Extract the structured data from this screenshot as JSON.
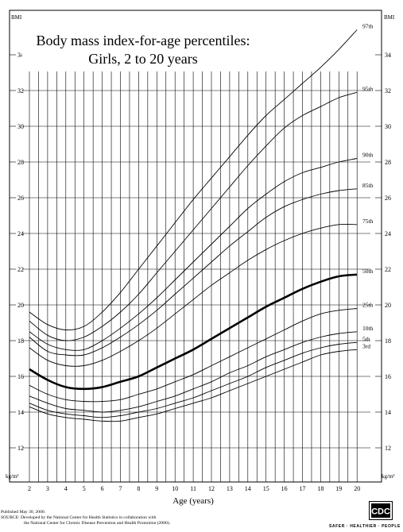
{
  "chart_data": {
    "type": "line",
    "title": "Body mass index-for-age percentiles:",
    "subtitle": "Girls, 2 to 20 years",
    "xlabel": "Age (years)",
    "ylabel_top": "BMI",
    "unit_label": "kg/m²",
    "xlim": [
      2,
      20
    ],
    "ylim": [
      11,
      36
    ],
    "x_ticks": [
      "2",
      "3",
      "4",
      "5",
      "6",
      "7",
      "8",
      "9",
      "10",
      "11",
      "12",
      "13",
      "14",
      "15",
      "16",
      "17",
      "18",
      "19",
      "20"
    ],
    "y_ticks": [
      "12",
      "14",
      "16",
      "18",
      "20",
      "22",
      "24",
      "26",
      "28",
      "30",
      "32",
      "34"
    ],
    "grid": true,
    "x": [
      2,
      3,
      4,
      5,
      6,
      7,
      8,
      9,
      10,
      11,
      12,
      13,
      14,
      15,
      16,
      17,
      18,
      19,
      20
    ],
    "series": [
      {
        "name": "97th",
        "bold": false,
        "values": [
          19.6,
          18.9,
          18.6,
          18.8,
          19.6,
          20.7,
          22.0,
          23.3,
          24.6,
          25.9,
          27.1,
          28.3,
          29.5,
          30.6,
          31.5,
          32.4,
          33.3,
          34.3,
          35.4
        ]
      },
      {
        "name": "95th",
        "bold": false,
        "values": [
          19.1,
          18.3,
          18.0,
          18.2,
          18.8,
          19.6,
          20.6,
          21.8,
          23.0,
          24.2,
          25.4,
          26.6,
          27.8,
          28.9,
          29.9,
          30.6,
          31.1,
          31.6,
          31.9
        ]
      },
      {
        "name": "90th",
        "bold": false,
        "values": [
          18.5,
          17.8,
          17.5,
          17.5,
          18.0,
          18.7,
          19.5,
          20.4,
          21.4,
          22.4,
          23.4,
          24.4,
          25.4,
          26.2,
          26.9,
          27.4,
          27.7,
          28.0,
          28.2
        ]
      },
      {
        "name": "85th",
        "bold": false,
        "values": [
          18.2,
          17.4,
          17.2,
          17.2,
          17.6,
          18.2,
          18.9,
          19.7,
          20.6,
          21.5,
          22.4,
          23.3,
          24.1,
          24.9,
          25.5,
          25.9,
          26.2,
          26.4,
          26.5
        ]
      },
      {
        "name": "75th",
        "bold": false,
        "values": [
          17.6,
          16.9,
          16.6,
          16.6,
          16.9,
          17.4,
          18.0,
          18.7,
          19.5,
          20.3,
          21.1,
          21.8,
          22.5,
          23.1,
          23.6,
          24.0,
          24.3,
          24.5,
          24.5
        ]
      },
      {
        "name": "50th",
        "bold": true,
        "values": [
          16.4,
          15.8,
          15.4,
          15.3,
          15.4,
          15.7,
          16.0,
          16.5,
          17.0,
          17.5,
          18.1,
          18.7,
          19.3,
          19.9,
          20.4,
          20.9,
          21.3,
          21.6,
          21.7
        ]
      },
      {
        "name": "25th",
        "bold": false,
        "values": [
          15.5,
          15.0,
          14.7,
          14.6,
          14.6,
          14.7,
          15.0,
          15.3,
          15.7,
          16.1,
          16.6,
          17.1,
          17.6,
          18.1,
          18.6,
          19.1,
          19.5,
          19.7,
          19.8
        ]
      },
      {
        "name": "10th",
        "bold": false,
        "values": [
          14.9,
          14.5,
          14.2,
          14.1,
          14.0,
          14.1,
          14.3,
          14.6,
          14.9,
          15.3,
          15.7,
          16.2,
          16.6,
          17.1,
          17.5,
          17.9,
          18.2,
          18.4,
          18.5
        ]
      },
      {
        "name": "5th",
        "bold": false,
        "values": [
          14.5,
          14.1,
          13.9,
          13.8,
          13.7,
          13.8,
          14.0,
          14.2,
          14.5,
          14.8,
          15.2,
          15.6,
          16.0,
          16.5,
          16.9,
          17.3,
          17.6,
          17.8,
          17.9
        ]
      },
      {
        "name": "3rd",
        "bold": false,
        "values": [
          14.3,
          13.9,
          13.7,
          13.6,
          13.5,
          13.5,
          13.7,
          13.9,
          14.2,
          14.5,
          14.8,
          15.2,
          15.6,
          16.0,
          16.4,
          16.8,
          17.2,
          17.4,
          17.5
        ]
      }
    ]
  },
  "footer": {
    "published": "Published May 30, 2000.",
    "source_line1": "SOURCE: Developed by the National Center for Health Statistics in collaboration with",
    "source_line2": "the National Center for Chronic Disease Prevention and Health Promotion (2000)."
  },
  "branding": {
    "logo_text": "CDC",
    "tagline": "SAFER · HEALTHIER · PEOPLE"
  }
}
